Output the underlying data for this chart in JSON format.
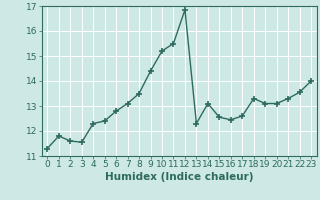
{
  "x": [
    0,
    1,
    2,
    3,
    4,
    5,
    6,
    7,
    8,
    9,
    10,
    11,
    12,
    13,
    14,
    15,
    16,
    17,
    18,
    19,
    20,
    21,
    22,
    23
  ],
  "y": [
    11.3,
    11.8,
    11.6,
    11.55,
    12.3,
    12.4,
    12.8,
    13.1,
    13.5,
    14.4,
    15.2,
    15.5,
    16.85,
    12.3,
    13.1,
    12.55,
    12.45,
    12.6,
    13.3,
    13.1,
    13.1,
    13.3,
    13.55,
    14.0
  ],
  "line_color": "#2d6b5e",
  "marker": "+",
  "bg_color": "#cde8e5",
  "grid_color": "#b0d5d0",
  "xlabel": "Humidex (Indice chaleur)",
  "ylim": [
    11,
    17
  ],
  "xlim": [
    -0.5,
    23.5
  ],
  "yticks": [
    11,
    12,
    13,
    14,
    15,
    16,
    17
  ],
  "xticks": [
    0,
    1,
    2,
    3,
    4,
    5,
    6,
    7,
    8,
    9,
    10,
    11,
    12,
    13,
    14,
    15,
    16,
    17,
    18,
    19,
    20,
    21,
    22,
    23
  ],
  "xlabel_fontsize": 7.5,
  "tick_fontsize": 6.5,
  "linewidth": 1.0,
  "markersize": 4,
  "markeredgewidth": 1.2
}
